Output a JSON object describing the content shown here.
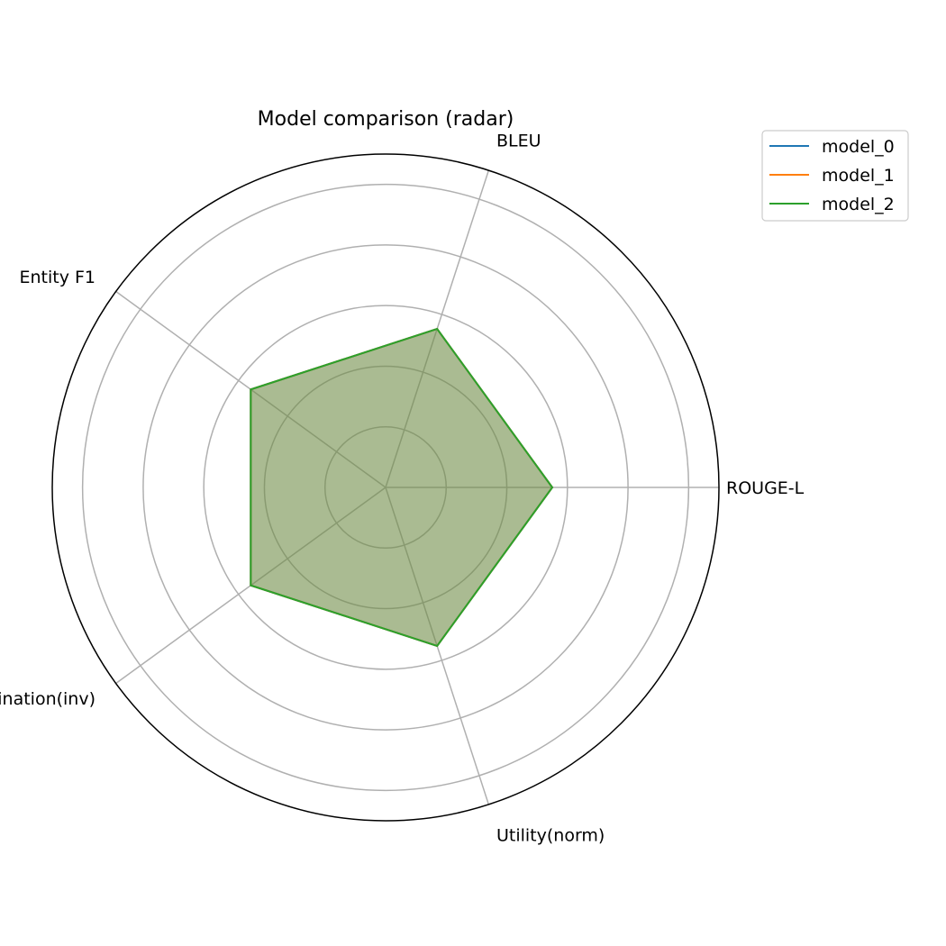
{
  "chart_data": {
    "type": "radar",
    "title": "Model comparison (radar)",
    "categories": [
      "ROUGE-L",
      "BLEU",
      "Entity F1",
      "Hallucination(inv)",
      "Utility(norm)"
    ],
    "rlim": [
      0,
      1
    ],
    "rings": 5,
    "grid": true,
    "legend_position": "top-right",
    "series": [
      {
        "name": "model_0",
        "color": "#1f77b4",
        "values": [
          0.5,
          0.5,
          0.5,
          0.5,
          0.5
        ]
      },
      {
        "name": "model_1",
        "color": "#ff7f0e",
        "values": [
          0.5,
          0.5,
          0.5,
          0.5,
          0.5
        ]
      },
      {
        "name": "model_2",
        "color": "#2ca02c",
        "values": [
          0.5,
          0.5,
          0.5,
          0.5,
          0.5
        ]
      }
    ]
  }
}
